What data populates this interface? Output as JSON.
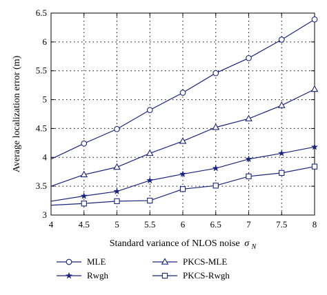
{
  "chart_data": {
    "type": "line",
    "title": "",
    "xlabel": "Standard variance of NLOS noise",
    "xlabel_symbol": "σ",
    "xlabel_subscript": "N",
    "ylabel": "Average localization error (m)",
    "xlim": [
      4,
      8
    ],
    "ylim": [
      3,
      6.5
    ],
    "xticks": [
      "4",
      "4.5",
      "5",
      "5.5",
      "6",
      "6.5",
      "7",
      "7.5",
      "8"
    ],
    "yticks": [
      "3",
      "3.5",
      "4",
      "4.5",
      "5",
      "5.5",
      "6",
      "6.5"
    ],
    "grid": true,
    "legend_position": "bottom",
    "line_color": "#1a237e",
    "x": [
      4,
      4.5,
      5,
      5.5,
      6,
      6.5,
      7,
      7.5,
      8
    ],
    "series": [
      {
        "name": "MLE",
        "marker": "circle",
        "values": [
          3.97,
          4.24,
          4.49,
          4.82,
          5.12,
          5.46,
          5.72,
          6.04,
          6.39
        ]
      },
      {
        "name": "PKCS-MLE",
        "marker": "triangle",
        "values": [
          3.5,
          3.7,
          3.83,
          4.07,
          4.28,
          4.52,
          4.67,
          4.9,
          5.18
        ]
      },
      {
        "name": "Rwgh",
        "marker": "star",
        "values": [
          3.24,
          3.33,
          3.41,
          3.6,
          3.71,
          3.81,
          3.97,
          4.07,
          4.18
        ]
      },
      {
        "name": "PKCS-Rwgh",
        "marker": "square",
        "values": [
          3.17,
          3.2,
          3.24,
          3.25,
          3.45,
          3.51,
          3.67,
          3.73,
          3.84
        ]
      }
    ]
  }
}
